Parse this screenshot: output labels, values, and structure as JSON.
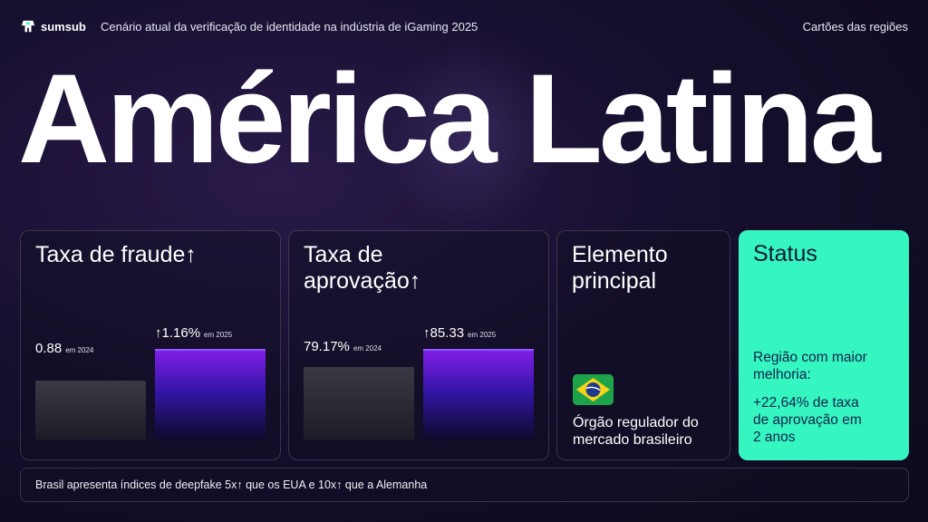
{
  "header": {
    "logo_text": "sumsub",
    "report_title": "Cenário atual da verificação de identidade na indústria de iGaming 2025",
    "section_link": "Cartões das regiões"
  },
  "hero_title": "América Latina",
  "cards": {
    "fraud": {
      "title": "Taxa de fraude↑",
      "value_2024": "0.88",
      "label_2024": "em 2024",
      "value_2025": "↑1.16%",
      "label_2025": "em 2025",
      "bar_2024": 0.88,
      "bar_2025": 1.16
    },
    "approval": {
      "title_line1": "Taxa de",
      "title_line2": "aprovação↑",
      "value_2024": "79.17%",
      "label_2024": "em 2024",
      "value_2025": "↑85.33",
      "label_2025": "em 2025",
      "bar_2024": 79.17,
      "bar_2025": 85.33
    },
    "element": {
      "title_line1": "Elemento",
      "title_line2": "principal",
      "icon": "brazil-flag-icon",
      "desc_line1": "Órgão regulador do",
      "desc_line2": "mercado brasileiro"
    },
    "status": {
      "title": "Status",
      "line1": "Região com maior",
      "line2": "melhoria:",
      "line3": "+22,64% de taxa",
      "line4": "de aprovação em",
      "line5": "2 anos"
    }
  },
  "footer_text": "Brasil apresenta índices de deepfake 5x↑ que os EUA e 10x↑ que a Alemanha",
  "colors": {
    "accent": "#35f5c1",
    "bar_gradient_top": "#7f1fe6",
    "background": "#160f2e"
  }
}
